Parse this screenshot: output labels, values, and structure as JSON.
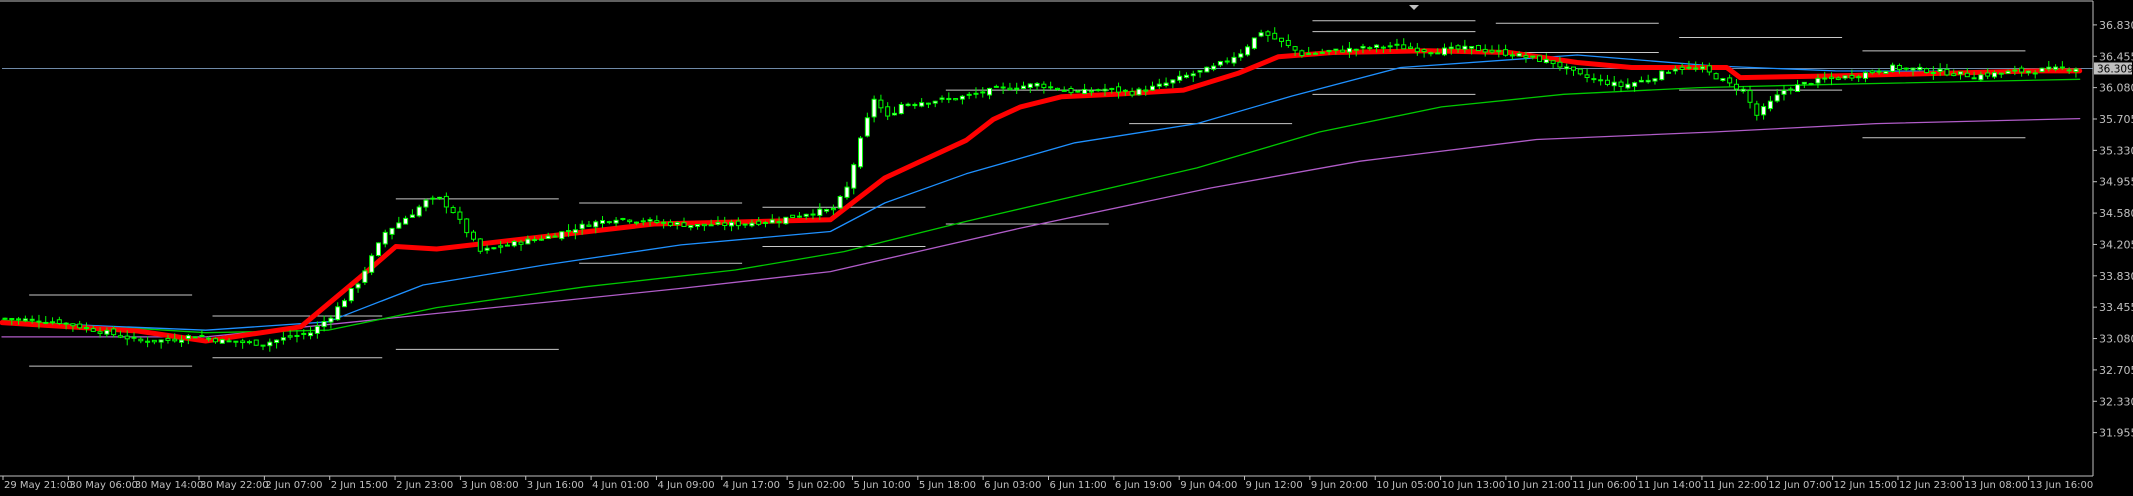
{
  "chart_data": {
    "type": "candlestick",
    "ylim": [
      31.58,
      37.02
    ],
    "y_ticks": [
      "36.830",
      "36.455",
      "36.080",
      "35.705",
      "35.330",
      "34.955",
      "34.580",
      "34.205",
      "33.830",
      "33.455",
      "33.080",
      "32.705",
      "32.330",
      "31.955"
    ],
    "x_ticks": [
      "29 May 21:00",
      "30 May 06:00",
      "30 May 14:00",
      "30 May 22:00",
      "2 Jun 07:00",
      "2 Jun 15:00",
      "2 Jun 23:00",
      "3 Jun 08:00",
      "3 Jun 16:00",
      "4 Jun 01:00",
      "4 Jun 09:00",
      "4 Jun 17:00",
      "5 Jun 02:00",
      "5 Jun 10:00",
      "5 Jun 18:00",
      "6 Jun 03:00",
      "6 Jun 11:00",
      "6 Jun 19:00",
      "9 Jun 04:00",
      "9 Jun 12:00",
      "9 Jun 20:00",
      "10 Jun 05:00",
      "10 Jun 13:00",
      "10 Jun 21:00",
      "11 Jun 06:00",
      "11 Jun 14:00",
      "11 Jun 22:00",
      "12 Jun 07:00",
      "12 Jun 15:00",
      "12 Jun 23:00",
      "13 Jun 08:00",
      "13 Jun 16:00"
    ],
    "current_price": "36.309",
    "candle_count": 190,
    "colors": {
      "background": "#000000",
      "axis": "#c0c0c0",
      "bull_body": "#ffffff",
      "candle": "#00ff00",
      "ma_fast": "#ff0000",
      "ma_blue": "#1e90ff",
      "ma_green": "#00c800",
      "ma_slow": "#b05cc8",
      "level_lines": "#c8c8c8",
      "price_badge": "#c0c0c0"
    },
    "close_path": [
      [
        0,
        33.32
      ],
      [
        8,
        33.28
      ],
      [
        15,
        33.15
      ],
      [
        20,
        33.05
      ],
      [
        24,
        33.06
      ],
      [
        28,
        33.12
      ],
      [
        32,
        33.05
      ],
      [
        38,
        33.02
      ],
      [
        42,
        33.1
      ],
      [
        45,
        33.15
      ],
      [
        48,
        33.35
      ],
      [
        52,
        33.75
      ],
      [
        56,
        34.35
      ],
      [
        60,
        34.58
      ],
      [
        62,
        34.72
      ],
      [
        64,
        34.75
      ],
      [
        66,
        34.6
      ],
      [
        70,
        34.12
      ],
      [
        74,
        34.2
      ],
      [
        80,
        34.3
      ],
      [
        86,
        34.45
      ],
      [
        90,
        34.52
      ],
      [
        96,
        34.47
      ],
      [
        102,
        34.43
      ],
      [
        108,
        34.45
      ],
      [
        114,
        34.5
      ],
      [
        118,
        34.58
      ],
      [
        122,
        34.62
      ],
      [
        124,
        34.88
      ],
      [
        126,
        35.45
      ],
      [
        128,
        35.95
      ],
      [
        130,
        35.72
      ],
      [
        132,
        35.88
      ],
      [
        136,
        35.92
      ],
      [
        140,
        35.95
      ],
      [
        146,
        36.06
      ],
      [
        152,
        36.12
      ],
      [
        158,
        36.02
      ],
      [
        162,
        36.06
      ],
      [
        166,
        36.02
      ],
      [
        170,
        36.1
      ],
      [
        174,
        36.22
      ],
      [
        178,
        36.32
      ],
      [
        182,
        36.5
      ],
      [
        185,
        36.75
      ],
      [
        188,
        36.62
      ],
      [
        191,
        36.48
      ],
      [
        196,
        36.52
      ],
      [
        200,
        36.55
      ],
      [
        204,
        36.58
      ],
      [
        210,
        36.52
      ],
      [
        216,
        36.55
      ],
      [
        222,
        36.48
      ],
      [
        228,
        36.38
      ],
      [
        232,
        36.22
      ],
      [
        238,
        36.1
      ],
      [
        242,
        36.18
      ],
      [
        246,
        36.32
      ],
      [
        250,
        36.3
      ],
      [
        254,
        36.12
      ],
      [
        256,
        36.05
      ],
      [
        258,
        35.75
      ],
      [
        262,
        36.05
      ],
      [
        266,
        36.15
      ],
      [
        272,
        36.22
      ],
      [
        278,
        36.32
      ],
      [
        284,
        36.28
      ],
      [
        290,
        36.22
      ],
      [
        296,
        36.27
      ],
      [
        302,
        36.3
      ],
      [
        306,
        36.32
      ]
    ],
    "moving_averages": [
      {
        "color": "#ff0000",
        "width": 5,
        "points": [
          [
            0,
            33.27
          ],
          [
            20,
            33.17
          ],
          [
            30,
            33.05
          ],
          [
            44,
            33.22
          ],
          [
            54,
            33.9
          ],
          [
            58,
            34.18
          ],
          [
            64,
            34.15
          ],
          [
            80,
            34.3
          ],
          [
            96,
            34.45
          ],
          [
            122,
            34.5
          ],
          [
            126,
            34.75
          ],
          [
            130,
            35.0
          ],
          [
            134,
            35.15
          ],
          [
            142,
            35.45
          ],
          [
            146,
            35.7
          ],
          [
            150,
            35.85
          ],
          [
            156,
            35.97
          ],
          [
            164,
            36.0
          ],
          [
            174,
            36.05
          ],
          [
            182,
            36.25
          ],
          [
            188,
            36.45
          ],
          [
            196,
            36.5
          ],
          [
            210,
            36.52
          ],
          [
            222,
            36.5
          ],
          [
            232,
            36.38
          ],
          [
            240,
            36.32
          ],
          [
            254,
            36.32
          ],
          [
            256,
            36.2
          ],
          [
            270,
            36.22
          ],
          [
            300,
            36.28
          ],
          [
            306,
            36.28
          ]
        ]
      },
      {
        "color": "#1e90ff",
        "width": 1.3,
        "points": [
          [
            0,
            33.28
          ],
          [
            30,
            33.18
          ],
          [
            48,
            33.28
          ],
          [
            62,
            33.72
          ],
          [
            80,
            33.96
          ],
          [
            100,
            34.2
          ],
          [
            122,
            34.36
          ],
          [
            130,
            34.7
          ],
          [
            142,
            35.05
          ],
          [
            158,
            35.42
          ],
          [
            176,
            35.65
          ],
          [
            190,
            35.98
          ],
          [
            206,
            36.32
          ],
          [
            232,
            36.47
          ],
          [
            252,
            36.34
          ],
          [
            270,
            36.28
          ],
          [
            306,
            36.27
          ]
        ]
      },
      {
        "color": "#00c800",
        "width": 1.3,
        "points": [
          [
            0,
            33.3
          ],
          [
            30,
            33.15
          ],
          [
            48,
            33.18
          ],
          [
            64,
            33.45
          ],
          [
            86,
            33.7
          ],
          [
            108,
            33.9
          ],
          [
            124,
            34.12
          ],
          [
            142,
            34.48
          ],
          [
            160,
            34.82
          ],
          [
            176,
            35.12
          ],
          [
            194,
            35.55
          ],
          [
            212,
            35.85
          ],
          [
            230,
            36.0
          ],
          [
            250,
            36.08
          ],
          [
            270,
            36.12
          ],
          [
            306,
            36.18
          ]
        ]
      },
      {
        "color": "#b05cc8",
        "width": 1.3,
        "points": [
          [
            0,
            33.1
          ],
          [
            30,
            33.1
          ],
          [
            52,
            33.28
          ],
          [
            76,
            33.48
          ],
          [
            100,
            33.68
          ],
          [
            122,
            33.88
          ],
          [
            150,
            34.4
          ],
          [
            178,
            34.88
          ],
          [
            200,
            35.2
          ],
          [
            226,
            35.46
          ],
          [
            252,
            35.55
          ],
          [
            276,
            35.65
          ],
          [
            306,
            35.71
          ]
        ]
      }
    ],
    "level_lines": [
      {
        "x0": 4,
        "x1": 28,
        "y": 33.6
      },
      {
        "x0": 4,
        "x1": 28,
        "y": 32.75
      },
      {
        "x0": 31,
        "x1": 56,
        "y": 33.35
      },
      {
        "x0": 31,
        "x1": 56,
        "y": 32.85
      },
      {
        "x0": 58,
        "x1": 82,
        "y": 34.75
      },
      {
        "x0": 58,
        "x1": 82,
        "y": 32.95
      },
      {
        "x0": 85,
        "x1": 109,
        "y": 34.7
      },
      {
        "x0": 85,
        "x1": 109,
        "y": 33.98
      },
      {
        "x0": 112,
        "x1": 136,
        "y": 34.65
      },
      {
        "x0": 112,
        "x1": 136,
        "y": 34.18
      },
      {
        "x0": 139,
        "x1": 163,
        "y": 36.05
      },
      {
        "x0": 139,
        "x1": 163,
        "y": 34.45
      },
      {
        "x0": 166,
        "x1": 190,
        "y": 35.65
      },
      {
        "x0": 193,
        "x1": 217,
        "y": 36.88
      },
      {
        "x0": 193,
        "x1": 217,
        "y": 36.75
      },
      {
        "x0": 193,
        "x1": 217,
        "y": 36.0
      },
      {
        "x0": 220,
        "x1": 244,
        "y": 36.85
      },
      {
        "x0": 220,
        "x1": 244,
        "y": 36.5
      },
      {
        "x0": 247,
        "x1": 271,
        "y": 36.68
      },
      {
        "x0": 247,
        "x1": 271,
        "y": 36.05
      },
      {
        "x0": 274,
        "x1": 298,
        "y": 36.52
      },
      {
        "x0": 274,
        "x1": 298,
        "y": 35.48
      }
    ]
  }
}
